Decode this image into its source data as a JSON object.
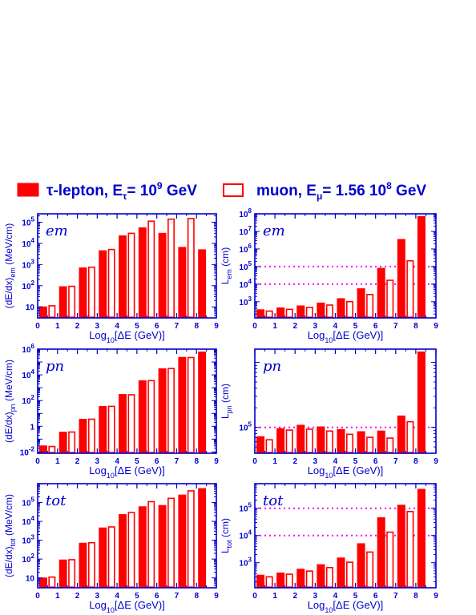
{
  "legend": {
    "tau_label": "τ-lepton, E",
    "tau_sub": "τ",
    "tau_mid": "= 10",
    "tau_exp": "9",
    "tau_unit": " GeV",
    "muon_label": "muon, E",
    "muon_sub": "μ",
    "muon_rest": "= 1.56 10",
    "muon_exp": "8",
    "muon_unit": " GeV",
    "tau_color": "#ff0000",
    "muon_color": "#ff0000",
    "text_color": "#0000cc"
  },
  "chart_data": [
    {
      "type": "bar",
      "panel": "em",
      "label": "em",
      "scale": "log",
      "ylabel_main": "(dE/dx)",
      "ylabel_sub": "em",
      "ylabel_unit": " (MeV/cm)",
      "xlabel": "Log10[ΔE (GeV)]",
      "xlim": [
        0,
        9
      ],
      "ylim": [
        3,
        250000
      ],
      "yticks": [
        {
          "v": 10,
          "m": "10",
          "e": ""
        },
        {
          "v": 100,
          "m": "10",
          "e": "2"
        },
        {
          "v": 1000,
          "m": "10",
          "e": "3"
        },
        {
          "v": 10000,
          "m": "10",
          "e": "4"
        },
        {
          "v": 100000,
          "m": "10",
          "e": "5"
        }
      ],
      "xticks": [
        0,
        1,
        2,
        3,
        4,
        5,
        6,
        7,
        8,
        9
      ],
      "categories": [
        0.5,
        1.5,
        2.5,
        3.5,
        4.5,
        5.5,
        6.5,
        7.5,
        8.5
      ],
      "series": [
        {
          "name": "τ-lepton",
          "style": "filled",
          "values": [
            10,
            90,
            700,
            4500,
            23000,
            55000,
            30000,
            6500,
            5000
          ]
        },
        {
          "name": "muon",
          "style": "open",
          "values": [
            12,
            100,
            800,
            5500,
            32000,
            120000,
            150000,
            160000,
            null
          ]
        }
      ]
    },
    {
      "type": "bar",
      "panel": "em",
      "label": "em",
      "scale": "log",
      "ylabel_main": "L",
      "ylabel_sub": "em",
      "ylabel_unit": " (cm)",
      "xlabel": "Log10[ΔE (GeV)]",
      "xlim": [
        0,
        9
      ],
      "ylim": [
        120,
        100000000
      ],
      "yticks": [
        {
          "v": 1000,
          "m": "10",
          "e": "3"
        },
        {
          "v": 10000,
          "m": "10",
          "e": "4"
        },
        {
          "v": 100000,
          "m": "10",
          "e": "5"
        },
        {
          "v": 1000000,
          "m": "10",
          "e": "6"
        },
        {
          "v": 10000000,
          "m": "10",
          "e": "7"
        },
        {
          "v": 100000000,
          "m": "10",
          "e": "8"
        }
      ],
      "xticks": [
        0,
        1,
        2,
        3,
        4,
        5,
        6,
        7,
        8,
        9
      ],
      "ref_lines": [
        10000,
        100000
      ],
      "categories": [
        0.5,
        1.5,
        2.5,
        3.5,
        4.5,
        5.5,
        6.5,
        7.5,
        8.5
      ],
      "series": [
        {
          "name": "τ-lepton",
          "style": "filled",
          "values": [
            350,
            450,
            580,
            850,
            1500,
            5500,
            80000,
            3500000,
            70000000
          ]
        },
        {
          "name": "muon",
          "style": "open",
          "values": [
            320,
            400,
            520,
            700,
            1100,
            2800,
            18000,
            230000,
            null
          ]
        }
      ]
    },
    {
      "type": "bar",
      "panel": "pn",
      "label": "pn",
      "scale": "log",
      "ylabel_main": "(dE/dx)",
      "ylabel_sub": "pn",
      "ylabel_unit": " (MeV/cm)",
      "xlabel": "Log10[ΔE (GeV)]",
      "xlim": [
        0,
        9
      ],
      "ylim": [
        0.008,
        1000000
      ],
      "yticks": [
        {
          "v": 0.01,
          "m": "10",
          "e": "-2"
        },
        {
          "v": 1,
          "m": "1",
          "e": ""
        },
        {
          "v": 100,
          "m": "10",
          "e": "2"
        },
        {
          "v": 10000,
          "m": "10",
          "e": "4"
        },
        {
          "v": 1000000,
          "m": "10",
          "e": "6"
        }
      ],
      "xticks": [
        0,
        1,
        2,
        3,
        4,
        5,
        6,
        7,
        8,
        9
      ],
      "categories": [
        0.5,
        1.5,
        2.5,
        3.5,
        4.5,
        5.5,
        6.5,
        7.5,
        8.5
      ],
      "series": [
        {
          "name": "τ-lepton",
          "style": "filled",
          "values": [
            0.03,
            0.35,
            3.5,
            35,
            300,
            3500,
            30000,
            230000,
            600000
          ]
        },
        {
          "name": "muon",
          "style": "open",
          "values": [
            0.03,
            0.4,
            4,
            40,
            320,
            4000,
            35000,
            250000,
            null
          ]
        }
      ]
    },
    {
      "type": "bar",
      "panel": "pn",
      "label": "pn",
      "scale": "log",
      "ylabel_main": "L",
      "ylabel_sub": "pn",
      "ylabel_unit": " (cm)",
      "xlabel": "Log10[ΔE (GeV)]",
      "xlim": [
        0,
        9
      ],
      "ylim": [
        40000,
        1600000
      ],
      "yticks": [
        {
          "v": 100000,
          "m": "10",
          "e": "5"
        }
      ],
      "xticks": [
        0,
        1,
        2,
        3,
        4,
        5,
        6,
        7,
        8,
        9
      ],
      "ref_lines": [
        100000
      ],
      "categories": [
        0.5,
        1.5,
        2.5,
        3.5,
        4.5,
        5.5,
        6.5,
        7.5,
        8.5
      ],
      "series": [
        {
          "name": "τ-lepton",
          "style": "filled",
          "values": [
            72000,
            96000,
            108000,
            102000,
            93000,
            86000,
            88000,
            150000,
            1450000
          ]
        },
        {
          "name": "muon",
          "style": "open",
          "values": [
            66000,
            93000,
            96000,
            90000,
            80000,
            72000,
            70000,
            125000,
            null
          ]
        }
      ]
    },
    {
      "type": "bar",
      "panel": "tot",
      "label": "tot",
      "scale": "log",
      "ylabel_main": "(dE/dx)",
      "ylabel_sub": "tot",
      "ylabel_unit": " (MeV/cm)",
      "xlabel": "Log10[ΔE (GeV)]",
      "xlim": [
        0,
        9
      ],
      "ylim": [
        3,
        1000000
      ],
      "yticks": [
        {
          "v": 10,
          "m": "10",
          "e": ""
        },
        {
          "v": 100,
          "m": "10",
          "e": "2"
        },
        {
          "v": 1000,
          "m": "10",
          "e": "3"
        },
        {
          "v": 10000,
          "m": "10",
          "e": "4"
        },
        {
          "v": 100000,
          "m": "10",
          "e": "5"
        }
      ],
      "xticks": [
        0,
        1,
        2,
        3,
        4,
        5,
        6,
        7,
        8,
        9
      ],
      "categories": [
        0.5,
        1.5,
        2.5,
        3.5,
        4.5,
        5.5,
        6.5,
        7.5,
        8.5
      ],
      "series": [
        {
          "name": "τ-lepton",
          "style": "filled",
          "values": [
            10,
            90,
            700,
            4500,
            23000,
            60000,
            70000,
            250000,
            550000
          ]
        },
        {
          "name": "muon",
          "style": "open",
          "values": [
            12,
            100,
            800,
            5500,
            32000,
            120000,
            180000,
            450000,
            null
          ]
        }
      ]
    },
    {
      "type": "bar",
      "panel": "tot",
      "label": "tot",
      "scale": "log",
      "ylabel_main": "L",
      "ylabel_sub": "tot",
      "ylabel_unit": " (cm)",
      "xlabel": "Log10[ΔE (GeV)]",
      "xlim": [
        0,
        9
      ],
      "ylim": [
        120,
        800000
      ],
      "yticks": [
        {
          "v": 1000,
          "m": "10",
          "e": "3"
        },
        {
          "v": 10000,
          "m": "10",
          "e": "4"
        },
        {
          "v": 100000,
          "m": "10",
          "e": "5"
        }
      ],
      "xticks": [
        0,
        1,
        2,
        3,
        4,
        5,
        6,
        7,
        8,
        9
      ],
      "ref_lines": [
        10000,
        100000
      ],
      "categories": [
        0.5,
        1.5,
        2.5,
        3.5,
        4.5,
        5.5,
        6.5,
        7.5,
        8.5
      ],
      "series": [
        {
          "name": "τ-lepton",
          "style": "filled",
          "values": [
            350,
            420,
            580,
            850,
            1500,
            5000,
            45000,
            130000,
            500000
          ]
        },
        {
          "name": "muon",
          "style": "open",
          "values": [
            320,
            400,
            520,
            700,
            1100,
            2600,
            14000,
            80000,
            null
          ]
        }
      ]
    }
  ]
}
